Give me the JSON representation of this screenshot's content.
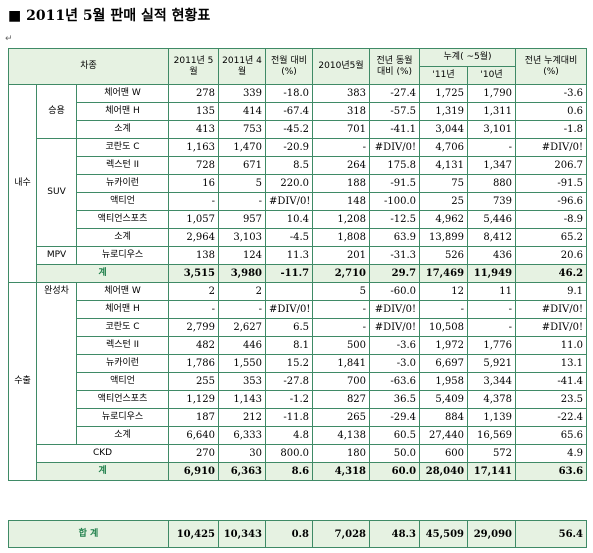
{
  "title": "■ 2011년 5월 판매 실적 현황표",
  "para_mark": "↵",
  "header": {
    "car": "차종",
    "c1": "2011년 5월",
    "c2": "2011년 4월",
    "c3": "전월 대비 (%)",
    "c4": "2010년5월",
    "c5": "전년 동월대비 (%)",
    "c6": "누계( ~5월)",
    "c6a": "'11년",
    "c6b": "'10년",
    "c7": "전년 누계대비 (%)"
  },
  "sections": {
    "domestic": "내수",
    "export": "수출",
    "passenger": "승용",
    "suv": "SUV",
    "mpv": "MPV",
    "finished": "완성차"
  },
  "domestic_rows": [
    {
      "name": "체어맨 W",
      "v": [
        "278",
        "339",
        "-18.0",
        "383",
        "-27.4",
        "1,725",
        "1,790",
        "-3.6"
      ]
    },
    {
      "name": "체어맨 H",
      "v": [
        "135",
        "414",
        "-67.4",
        "318",
        "-57.5",
        "1,319",
        "1,311",
        "0.6"
      ]
    },
    {
      "name": "소계",
      "v": [
        "413",
        "753",
        "-45.2",
        "701",
        "-41.1",
        "3,044",
        "3,101",
        "-1.8"
      ]
    },
    {
      "name": "코란도 C",
      "v": [
        "1,163",
        "1,470",
        "-20.9",
        "-",
        "#DIV/0!",
        "4,706",
        "-",
        "#DIV/0!"
      ]
    },
    {
      "name": "렉스턴 II",
      "v": [
        "728",
        "671",
        "8.5",
        "264",
        "175.8",
        "4,131",
        "1,347",
        "206.7"
      ]
    },
    {
      "name": "뉴카이런",
      "v": [
        "16",
        "5",
        "220.0",
        "188",
        "-91.5",
        "75",
        "880",
        "-91.5"
      ]
    },
    {
      "name": "액티언",
      "v": [
        "-",
        "-",
        "#DIV/0!",
        "148",
        "-100.0",
        "25",
        "739",
        "-96.6"
      ]
    },
    {
      "name": "액티언스포츠",
      "v": [
        "1,057",
        "957",
        "10.4",
        "1,208",
        "-12.5",
        "4,962",
        "5,446",
        "-8.9"
      ]
    },
    {
      "name": "소계",
      "v": [
        "2,964",
        "3,103",
        "-4.5",
        "1,808",
        "63.9",
        "13,899",
        "8,412",
        "65.2"
      ]
    },
    {
      "name": "뉴로디우스",
      "v": [
        "138",
        "124",
        "11.3",
        "201",
        "-31.3",
        "526",
        "436",
        "20.6"
      ]
    }
  ],
  "domestic_total": {
    "name": "계",
    "v": [
      "3,515",
      "3,980",
      "-11.7",
      "2,710",
      "29.7",
      "17,469",
      "11,949",
      "46.2"
    ]
  },
  "export_rows": [
    {
      "name": "체어맨 W",
      "v": [
        "2",
        "2",
        "",
        "5",
        "-60.0",
        "12",
        "11",
        "9.1"
      ]
    },
    {
      "name": "체어맨 H",
      "v": [
        "-",
        "-",
        "#DIV/0!",
        "-",
        "#DIV/0!",
        "-",
        "-",
        "#DIV/0!"
      ]
    },
    {
      "name": "코란도 C",
      "v": [
        "2,799",
        "2,627",
        "6.5",
        "-",
        "#DIV/0!",
        "10,508",
        "-",
        "#DIV/0!"
      ]
    },
    {
      "name": "렉스턴 II",
      "v": [
        "482",
        "446",
        "8.1",
        "500",
        "-3.6",
        "1,972",
        "1,776",
        "11.0"
      ]
    },
    {
      "name": "뉴카이런",
      "v": [
        "1,786",
        "1,550",
        "15.2",
        "1,841",
        "-3.0",
        "6,697",
        "5,921",
        "13.1"
      ]
    },
    {
      "name": "액티언",
      "v": [
        "255",
        "353",
        "-27.8",
        "700",
        "-63.6",
        "1,958",
        "3,344",
        "-41.4"
      ]
    },
    {
      "name": "액티언스포츠",
      "v": [
        "1,129",
        "1,143",
        "-1.2",
        "827",
        "36.5",
        "5,409",
        "4,378",
        "23.5"
      ]
    },
    {
      "name": "뉴로디우스",
      "v": [
        "187",
        "212",
        "-11.8",
        "265",
        "-29.4",
        "884",
        "1,139",
        "-22.4"
      ]
    },
    {
      "name": "소계",
      "v": [
        "6,640",
        "6,333",
        "4.8",
        "4,138",
        "60.5",
        "27,440",
        "16,569",
        "65.6"
      ]
    },
    {
      "name": "CKD",
      "v": [
        "270",
        "30",
        "800.0",
        "180",
        "50.0",
        "600",
        "572",
        "4.9"
      ]
    }
  ],
  "export_total": {
    "name": "계",
    "v": [
      "6,910",
      "6,363",
      "8.6",
      "4,318",
      "60.0",
      "28,040",
      "17,141",
      "63.6"
    ]
  },
  "grand_total": {
    "name": "합 계",
    "v": [
      "10,425",
      "10,343",
      "0.8",
      "7,028",
      "48.3",
      "45,509",
      "29,090",
      "56.4"
    ]
  }
}
